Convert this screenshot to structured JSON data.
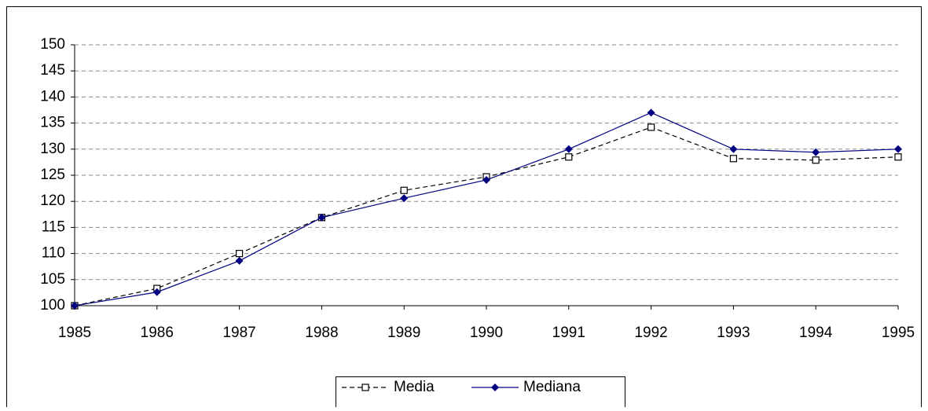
{
  "chart_data": {
    "type": "line",
    "x": [
      1985,
      1986,
      1987,
      1988,
      1989,
      1990,
      1991,
      1992,
      1993,
      1994,
      1995
    ],
    "series": [
      {
        "name": "Media",
        "color": "#000000",
        "dash": true,
        "marker": "square",
        "values": [
          100,
          103.3,
          110,
          116.9,
          122.1,
          124.7,
          128.5,
          134.2,
          128.2,
          127.9,
          128.5
        ]
      },
      {
        "name": "Mediana",
        "color": "#000080",
        "dash": false,
        "marker": "diamond",
        "values": [
          100,
          102.6,
          108.6,
          116.9,
          120.6,
          124.1,
          130,
          137,
          130,
          129.4,
          130
        ]
      }
    ],
    "xlim": [
      1985,
      1995
    ],
    "xticks": [
      1985,
      1986,
      1987,
      1988,
      1989,
      1990,
      1991,
      1992,
      1993,
      1994,
      1995
    ],
    "ylim": [
      100,
      150
    ],
    "yticks": [
      100,
      105,
      110,
      115,
      120,
      125,
      130,
      135,
      140,
      145,
      150
    ],
    "grid": true,
    "legend": "bottom"
  }
}
